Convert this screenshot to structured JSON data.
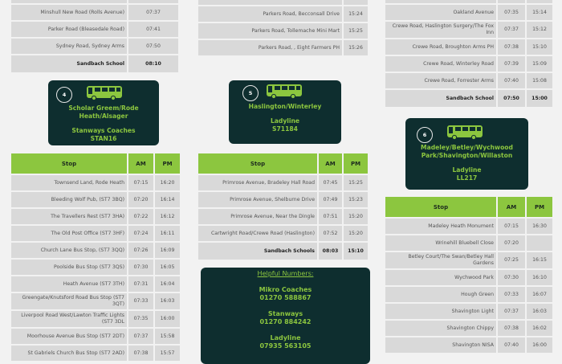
{
  "colors": {
    "accent": "#8cc63f",
    "card": "#0e2e2f",
    "row": "#d9d9d9",
    "background": "#f2f2f2"
  },
  "header_labels": {
    "stop": "Stop",
    "am": "AM",
    "pm": "PM"
  },
  "columns": [
    {
      "top_table": {
        "cols": [
          "stop",
          "am"
        ],
        "rows": [
          {
            "stop": "",
            "am": ""
          },
          {
            "stop": "Minshull New Road (Rolls Avenue)",
            "am": "07:37"
          },
          {
            "stop": "Parker Road (Bleasedale Road)",
            "am": "07:41"
          },
          {
            "stop": "Sydney Road, Sydney Arms",
            "am": "07:50"
          },
          {
            "stop": "Sandbach School",
            "am": "08:10",
            "bold": true
          }
        ]
      },
      "route": {
        "number": "4",
        "name": "Scholar Greem/Rode Heath/Alsager",
        "operator": "Stanways Coaches",
        "code": "STAN16",
        "icon": "bus-icon"
      },
      "table": {
        "rows": [
          {
            "stop": "Townsend Land, Rode Heath",
            "am": "07:15",
            "pm": "16:20"
          },
          {
            "stop": "Bleeding Wolf Pub, (ST7 3BQ)",
            "am": "07:20",
            "pm": "16:14"
          },
          {
            "stop": "The Travellers Rest (ST7 3HA)",
            "am": "07:22",
            "pm": "16:12"
          },
          {
            "stop": "The Old Post Office (ST7 3HF)",
            "am": "07:24",
            "pm": "16:11"
          },
          {
            "stop": "Church Lane Bus Stop, (ST7 3QQ)",
            "am": "07:26",
            "pm": "16:09"
          },
          {
            "stop": "Poolside Bus Stop (ST7 3QS)",
            "am": "07:30",
            "pm": "16:05"
          },
          {
            "stop": "Heath Avenue (ST7 3TH)",
            "am": "07:31",
            "pm": "16:04"
          },
          {
            "stop": "Greengate/Knutsford Road Bus Stop (ST7 3QT)",
            "am": "07:33",
            "pm": "16:03"
          },
          {
            "stop": "Liverpool Road West/Lawton Traffic Lights (ST7 3DL",
            "am": "07:35",
            "pm": "16:00"
          },
          {
            "stop": "Moorhouse Avenue Bus Stop (ST7 2DT)",
            "am": "07:37",
            "pm": "15:58"
          },
          {
            "stop": "St Gabriels Church Bus Stop (ST7 2AD)",
            "am": "07:38",
            "pm": "15:57"
          }
        ]
      }
    },
    {
      "top_table": {
        "cols": [
          "stop",
          "pm"
        ],
        "rows": [
          {
            "stop": "",
            "pm": ""
          },
          {
            "stop": "Parkers Road, Becconsall Drive",
            "pm": "15:24"
          },
          {
            "stop": "Parkers Road, Tollemache Mini Mart",
            "pm": "15:25"
          },
          {
            "stop": "Parkers Road, , Eight Farmers PH",
            "pm": "15:26"
          }
        ]
      },
      "route": {
        "number": "5",
        "name": "Haslington/Winterley",
        "operator": "Ladyline",
        "code": "S71184",
        "icon": "bus-icon"
      },
      "table": {
        "rows": [
          {
            "stop": "Primrose Avenue, Bradeley Hall Road",
            "am": "07:45",
            "pm": "15:25"
          },
          {
            "stop": "Primrose Avenue,  Shelburne Drive",
            "am": "07:49",
            "pm": "15:23"
          },
          {
            "stop": "Primrose Avenue, Near the Dingle",
            "am": "07:51",
            "pm": "15:20"
          },
          {
            "stop": "Cartwright Road/Crewe Road (Haslington)",
            "am": "07:52",
            "pm": "15:20"
          },
          {
            "stop": "Sandbach Schools",
            "am": "08:03",
            "pm": "15:10",
            "bold": true
          }
        ]
      },
      "helpful": {
        "title": "Helpful Numbers:",
        "contacts": [
          {
            "name": "Mikro Coaches",
            "phone": "01270 588867"
          },
          {
            "name": "Stanways",
            "phone": "01270 884242"
          },
          {
            "name": "Ladyline",
            "phone": "07935 563105"
          }
        ]
      }
    },
    {
      "top_table": {
        "cols": [
          "stop",
          "am",
          "pm"
        ],
        "rows": [
          {
            "stop": "",
            "am": "",
            "pm": ""
          },
          {
            "stop": "Oakland Avenue",
            "am": "07:35",
            "pm": "15:14"
          },
          {
            "stop": "Crewe Road, Haslington Surgery/The Fox Inn",
            "am": "07:37",
            "pm": "15:12"
          },
          {
            "stop": "Crewe Road, Broughton Arms PH",
            "am": "07:38",
            "pm": "15:10"
          },
          {
            "stop": "Crewe Road, Winterley Road",
            "am": "07:39",
            "pm": "15:09"
          },
          {
            "stop": "Crewe Road, Forrester Arms",
            "am": "07:40",
            "pm": "15:08"
          },
          {
            "stop": "Sandbach School",
            "am": "07:50",
            "pm": "15:00",
            "bold": true
          }
        ]
      },
      "route": {
        "number": "6",
        "name": "Madeley/Betley/Wychwood Park/Shavington/Willaston",
        "operator": "Ladyline",
        "code": "LL217",
        "icon": "bus-icon"
      },
      "table": {
        "rows": [
          {
            "stop": "Madeley Heath Monument",
            "am": "07:15",
            "pm": "16:30"
          },
          {
            "stop": "Wrinehill Bluebell Close",
            "am": "07:20",
            "pm": ""
          },
          {
            "stop": "Betley Court/The Swan/Betley Hall Gardens",
            "am": "07:25",
            "pm": "16:15"
          },
          {
            "stop": "Wychwood Park",
            "am": "07:30",
            "pm": "16:10"
          },
          {
            "stop": "Hough Green",
            "am": "07:33",
            "pm": "16:07"
          },
          {
            "stop": "Shavington Light",
            "am": "07:37",
            "pm": "16:03"
          },
          {
            "stop": "Shavington Chippy",
            "am": "07:38",
            "pm": "16:02"
          },
          {
            "stop": "Shavington NISA",
            "am": "07:40",
            "pm": "16:00"
          }
        ]
      }
    }
  ]
}
